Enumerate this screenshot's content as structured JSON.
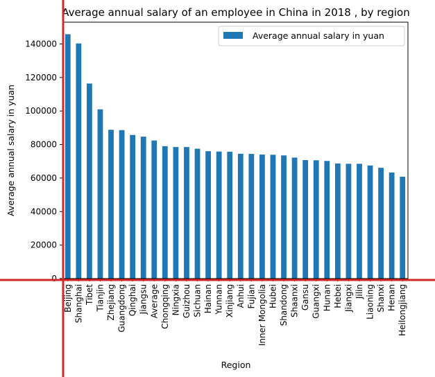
{
  "chart_data": {
    "type": "bar",
    "title": "Average annual salary of an employee in China in 2018 , by region",
    "xlabel": "Region",
    "ylabel": "Average annual salary in yuan",
    "ylim": [
      0,
      153000
    ],
    "yticks": [
      0,
      20000,
      40000,
      60000,
      80000,
      100000,
      120000,
      140000
    ],
    "grid": false,
    "legend_position": "top-right",
    "colors": {
      "bar": "#1f77b4",
      "annotation_line": "#d62728"
    },
    "series": [
      {
        "name": "Average annual salary in yuan",
        "values": [
          145800,
          140300,
          116400,
          101000,
          88800,
          88600,
          85700,
          84700,
          82400,
          79000,
          78500,
          78500,
          77500,
          76000,
          75800,
          75700,
          74500,
          74400,
          74000,
          73900,
          73500,
          72200,
          70700,
          70600,
          70200,
          68700,
          68500,
          68500,
          67500,
          66100,
          63300,
          60800
        ]
      }
    ],
    "categories": [
      "Beijing",
      "Shanghai",
      "Tibet",
      "Tianjin",
      "Zhejiang",
      "Guangdong",
      "Qinghai",
      "Jiangsu",
      "Average",
      "Chongqing",
      "Ningxia",
      "Guizhou",
      "Sichuan",
      "Hainan",
      "Yunnan",
      "Xinjiang",
      "Anhui",
      "Fujian",
      "Inner Mongolia",
      "Hubei",
      "Shandong",
      "Shaanxi",
      "Gansu",
      "Guangxi",
      "Hunan",
      "Hebei",
      "Jiangxi",
      "Jilin",
      "Liaoning",
      "Shanxi",
      "Henan",
      "Heilongjiang"
    ]
  }
}
